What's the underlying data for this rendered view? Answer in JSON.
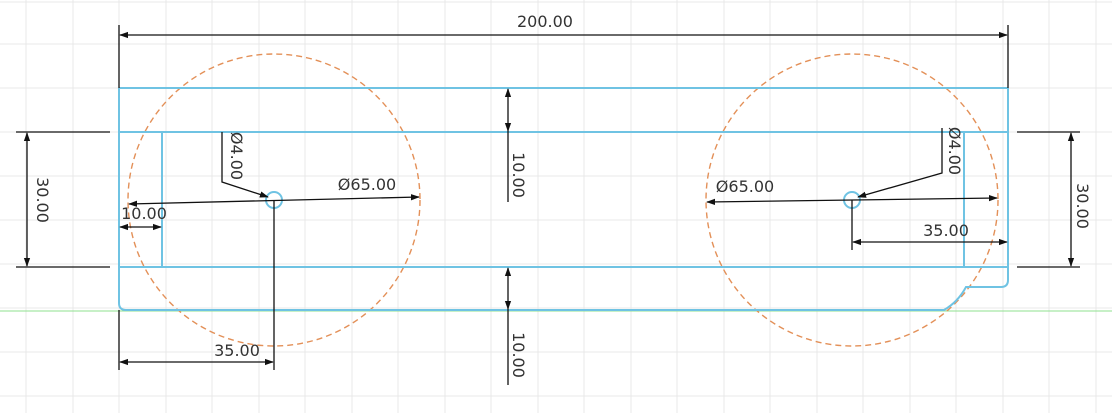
{
  "colors": {
    "background": "#ffffff",
    "grid": "#e8e8e8",
    "sketch_lines": "#6fc3e3",
    "construction_circles": "#e39058",
    "dimension_lines": "#111111",
    "dimension_text": "#333333",
    "axis_line": "#8fe08f"
  },
  "dimensions": {
    "overall_width": "200.00",
    "left_height": "30.00",
    "right_height": "30.00",
    "left_hole_diameter": "Ø4.00",
    "right_hole_diameter": "Ø4.00",
    "left_circle_diameter": "Ø65.00",
    "right_circle_diameter": "Ø65.00",
    "left_inset": "10.00",
    "center_top_gap": "10.00",
    "center_bottom_gap": "10.00",
    "left_hole_offset": "35.00",
    "right_hole_offset": "35.00"
  }
}
